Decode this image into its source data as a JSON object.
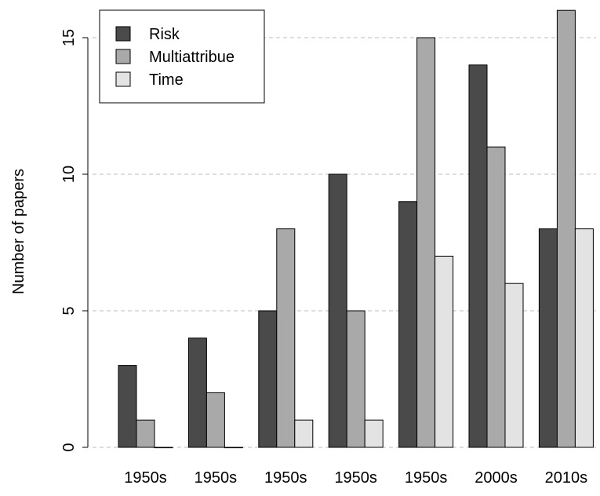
{
  "chart_data": {
    "type": "bar",
    "categories": [
      "1950s",
      "1950s",
      "1950s",
      "1950s",
      "1950s",
      "2000s",
      "2010s"
    ],
    "series": [
      {
        "name": "Risk",
        "color": "#4a4a4a",
        "values": [
          3,
          4,
          5,
          10,
          9,
          14,
          8
        ]
      },
      {
        "name": "Multiattribue",
        "color": "#a9a9a9",
        "values": [
          1,
          2,
          8,
          5,
          15,
          11,
          16
        ]
      },
      {
        "name": "Time",
        "color": "#e3e3e3",
        "values": [
          0,
          0,
          1,
          1,
          7,
          6,
          8
        ]
      }
    ],
    "title": "",
    "xlabel": "",
    "ylabel": "Number of papers",
    "ylim": [
      0,
      16
    ],
    "yticks": [
      0,
      5,
      10,
      15
    ],
    "grid": "horizontal dashed",
    "legend_position": "top-left"
  }
}
